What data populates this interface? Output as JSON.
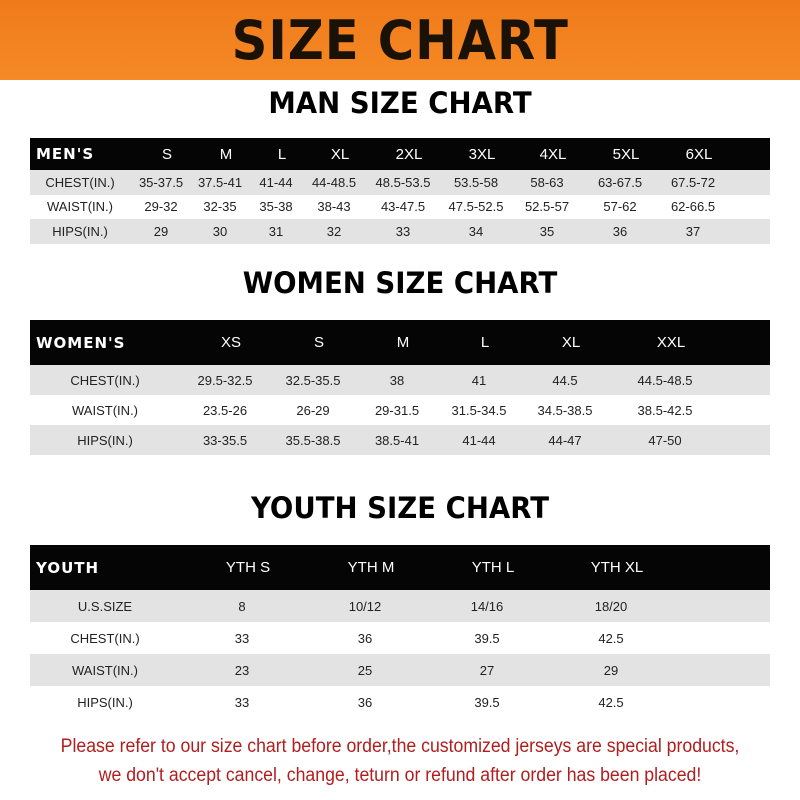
{
  "banner": {
    "title": "SIZE CHART",
    "color": "#f58a25"
  },
  "men": {
    "title": "MAN SIZE CHART",
    "header": [
      "MEN'S",
      "S",
      "M",
      "L",
      "XL",
      "2XL",
      "3XL",
      "4XL",
      "5XL",
      "6XL"
    ],
    "rows": [
      [
        "CHEST(IN.)",
        "35-37.5",
        "37.5-41",
        "41-44",
        "44-48.5",
        "48.5-53.5",
        "53.5-58",
        "58-63",
        "63-67.5",
        "67.5-72"
      ],
      [
        "WAIST(IN.)",
        "29-32",
        "32-35",
        "35-38",
        "38-43",
        "43-47.5",
        "47.5-52.5",
        "52.5-57",
        "57-62",
        "62-66.5"
      ],
      [
        "HIPS(IN.)",
        "29",
        "30",
        "31",
        "32",
        "33",
        "34",
        "35",
        "36",
        "37"
      ]
    ]
  },
  "women": {
    "title": "WOMEN SIZE CHART",
    "header": [
      "WOMEN'S",
      "XS",
      "S",
      "M",
      "L",
      "XL",
      "XXL"
    ],
    "rows": [
      [
        "CHEST(IN.)",
        "29.5-32.5",
        "32.5-35.5",
        "38",
        "41",
        "44.5",
        "44.5-48.5"
      ],
      [
        "WAIST(IN.)",
        "23.5-26",
        "26-29",
        "29-31.5",
        "31.5-34.5",
        "34.5-38.5",
        "38.5-42.5"
      ],
      [
        "HIPS(IN.)",
        "33-35.5",
        "35.5-38.5",
        "38.5-41",
        "41-44",
        "44-47",
        "47-50"
      ]
    ]
  },
  "youth": {
    "title": "YOUTH SIZE CHART",
    "header": [
      "YOUTH",
      "YTH S",
      "YTH M",
      "YTH L",
      "YTH XL"
    ],
    "rows": [
      [
        "U.S.SIZE",
        "8",
        "10/12",
        "14/16",
        "18/20"
      ],
      [
        "CHEST(IN.)",
        "33",
        "36",
        "39.5",
        "42.5"
      ],
      [
        "WAIST(IN.)",
        "23",
        "25",
        "27",
        "29"
      ],
      [
        "HIPS(IN.)",
        "33",
        "36",
        "39.5",
        "42.5"
      ]
    ]
  },
  "note": {
    "line1": "Please refer to our size chart before order,the customized jerseys are special products,",
    "line2": "we don't accept cancel, change, teturn or refund after order has been placed!",
    "color": "#b01e1e"
  }
}
